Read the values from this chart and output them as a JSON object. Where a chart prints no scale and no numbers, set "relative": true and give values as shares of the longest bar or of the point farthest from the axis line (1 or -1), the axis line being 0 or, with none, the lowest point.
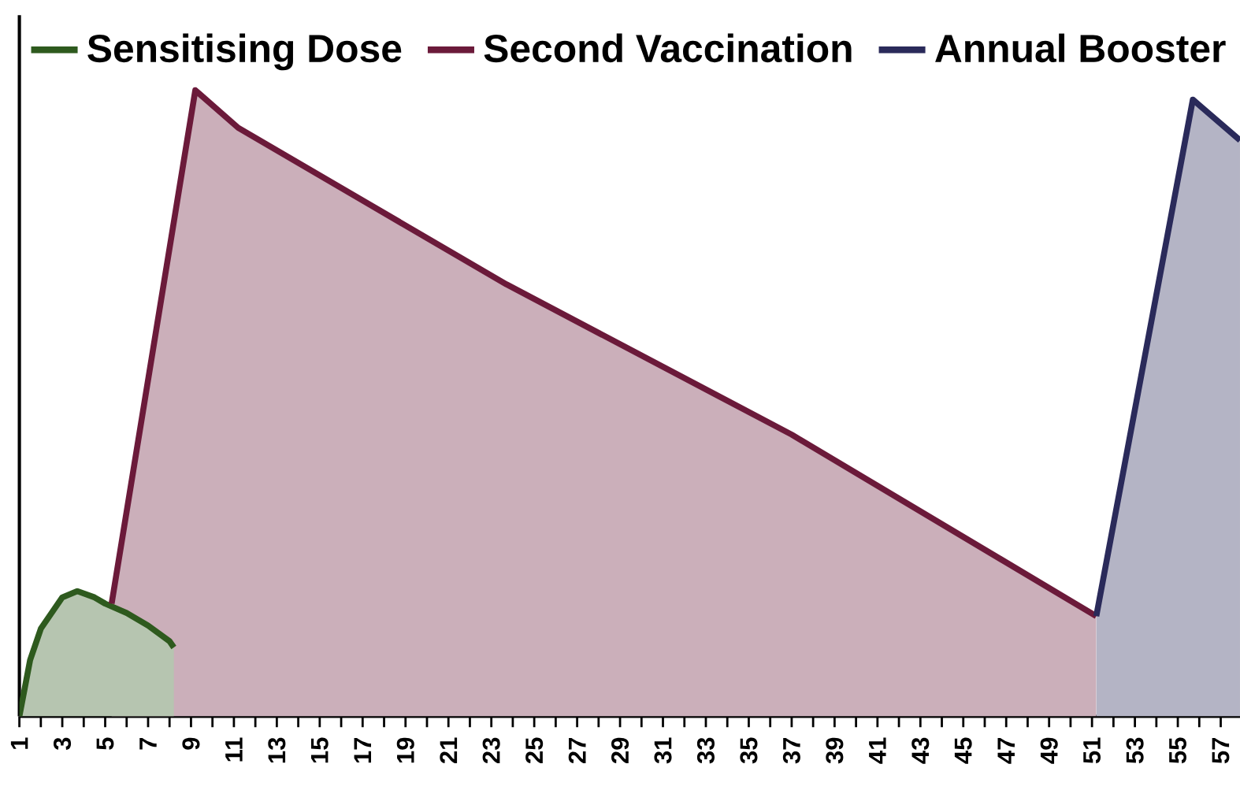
{
  "chart_data": {
    "type": "area",
    "relative": true,
    "legend": "top",
    "grid": false,
    "xlim": [
      1,
      57.9
    ],
    "xticks": [
      1,
      {
        "value": 2,
        "label": null
      },
      3,
      {
        "value": 4,
        "label": null
      },
      5,
      {
        "value": 6,
        "label": null
      },
      7,
      {
        "value": 8,
        "label": null
      },
      9,
      {
        "value": 10,
        "label": null
      },
      11,
      {
        "value": 12,
        "label": null
      },
      13,
      {
        "value": 14,
        "label": null
      },
      15,
      {
        "value": 16,
        "label": null
      },
      17,
      {
        "value": 18,
        "label": null
      },
      19,
      {
        "value": 20,
        "label": null
      },
      21,
      {
        "value": 22,
        "label": null
      },
      23,
      {
        "value": 24,
        "label": null
      },
      25,
      {
        "value": 26,
        "label": null
      },
      27,
      {
        "value": 28,
        "label": null
      },
      29,
      {
        "value": 30,
        "label": null
      },
      31,
      {
        "value": 32,
        "label": null
      },
      33,
      {
        "value": 34,
        "label": null
      },
      35,
      {
        "value": 36,
        "label": null
      },
      37,
      {
        "value": 38,
        "label": null
      },
      39,
      {
        "value": 40,
        "label": null
      },
      41,
      {
        "value": 42,
        "label": null
      },
      43,
      {
        "value": 44,
        "label": null
      },
      45,
      {
        "value": 46,
        "label": null
      },
      47,
      {
        "value": 48,
        "label": null
      },
      49,
      {
        "value": 50,
        "label": null
      },
      51,
      {
        "value": 52,
        "label": null
      },
      53,
      {
        "value": 54,
        "label": null
      },
      55,
      {
        "value": 56,
        "label": null
      },
      57
    ],
    "series": [
      {
        "name": "Sensitising Dose",
        "color": "#2e5a1e",
        "x": [
          1,
          1.5,
          2,
          3,
          3.7,
          4.5,
          5,
          6,
          7,
          8,
          8.2
        ],
        "values": [
          0,
          0.09,
          0.14,
          0.19,
          0.2,
          0.19,
          0.18,
          0.165,
          0.145,
          0.12,
          0.11
        ]
      },
      {
        "name": "Second Vaccination",
        "color": "#6b1a3a",
        "x": [
          5.3,
          9.2,
          11.2,
          23.7,
          37,
          51.2
        ],
        "values": [
          0.18,
          1,
          0.94,
          0.69,
          0.45,
          0.16
        ]
      },
      {
        "name": "Annual Booster",
        "color": "#2a2a5a",
        "x": [
          51.2,
          55.7,
          57.9
        ],
        "values": [
          0.16,
          0.985,
          0.92
        ]
      }
    ]
  }
}
